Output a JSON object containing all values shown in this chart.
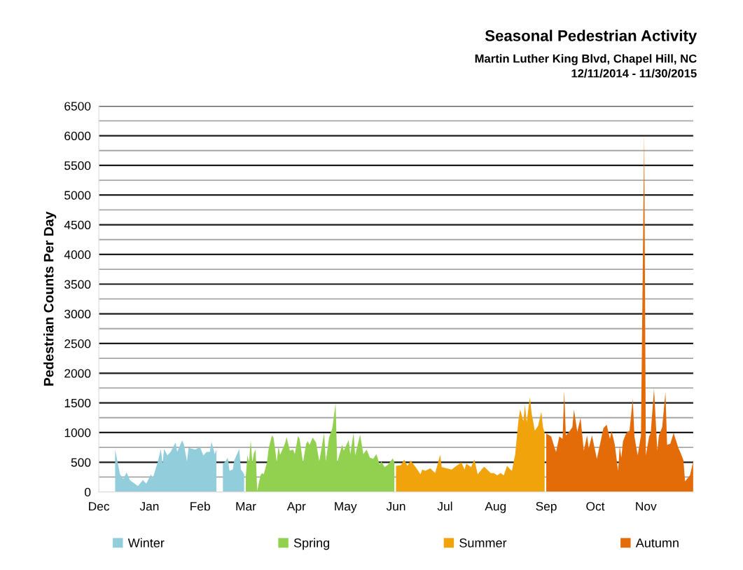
{
  "chart_data": {
    "type": "area",
    "title": "Seasonal Pedestrian Activity",
    "subtitle": "Martin Luther King Blvd, Chapel Hill, NC\n12/11/2014 - 11/30/2015",
    "ylabel": "Pedestrian Counts Per Day",
    "xlim": [
      "2014-12-01",
      "2015-11-30"
    ],
    "xticks": [
      {
        "value": "2014-12-01",
        "label": "Dec"
      },
      {
        "value": "2015-01-01",
        "label": "Jan"
      },
      {
        "value": "2015-02-01",
        "label": "Feb"
      },
      {
        "value": "2015-03-01",
        "label": "Mar"
      },
      {
        "value": "2015-04-01",
        "label": "Apr"
      },
      {
        "value": "2015-05-01",
        "label": "May"
      },
      {
        "value": "2015-06-01",
        "label": "Jun"
      },
      {
        "value": "2015-07-01",
        "label": "Jul"
      },
      {
        "value": "2015-08-01",
        "label": "Aug"
      },
      {
        "value": "2015-09-01",
        "label": "Sep"
      },
      {
        "value": "2015-10-01",
        "label": "Oct"
      },
      {
        "value": "2015-11-01",
        "label": "Nov"
      }
    ],
    "ylim": [
      0,
      6500
    ],
    "yticks": [
      0,
      {
        "value": 250,
        "label": null
      },
      500,
      {
        "value": 750,
        "label": null
      },
      1000,
      {
        "value": 1250,
        "label": null
      },
      1500,
      {
        "value": 1750,
        "label": null
      },
      2000,
      {
        "value": 2250,
        "label": null
      },
      2500,
      {
        "value": 2750,
        "label": null
      },
      3000,
      {
        "value": 3250,
        "label": null
      },
      3500,
      {
        "value": 3750,
        "label": null
      },
      4000,
      {
        "value": 4250,
        "label": null
      },
      4500,
      {
        "value": 4750,
        "label": null
      },
      5000,
      {
        "value": 5250,
        "label": null
      },
      5500,
      {
        "value": 5750,
        "label": null
      },
      6000,
      {
        "value": 6250,
        "label": null
      },
      6500
    ],
    "grid": "y",
    "legend": "bottom",
    "series": [
      {
        "name": "Winter",
        "color": "#92cddc",
        "x": [
          "2014-12-11",
          "2014-12-14",
          "2014-12-16",
          "2014-12-18",
          "2014-12-20",
          "2014-12-22",
          "2014-12-25",
          "2014-12-28",
          "2014-12-30",
          "2015-01-02",
          "2015-01-03",
          "2015-01-06",
          "2015-01-08",
          "2015-01-09",
          "2015-01-10",
          "2015-01-12",
          "2015-01-14",
          "2015-01-17",
          "2015-01-18",
          "2015-01-21",
          "2015-01-22",
          "2015-01-24",
          "2015-01-25",
          "2015-01-29",
          "2015-02-01",
          "2015-02-03",
          "2015-02-05",
          "2015-02-07",
          "2015-02-08",
          "2015-02-10",
          "2015-02-11",
          "2015-02-12",
          "2015-02-14",
          "2015-02-15",
          "2015-02-16",
          "2015-02-18",
          "2015-02-19",
          "2015-02-21",
          "2015-02-22",
          "2015-02-25",
          "2015-02-26",
          "2015-02-28"
        ],
        "values": [
          714,
          298,
          218,
          330,
          198,
          159,
          99,
          198,
          139,
          298,
          226,
          496,
          722,
          476,
          722,
          615,
          675,
          834,
          675,
          866,
          814,
          516,
          742,
          714,
          754,
          615,
          675,
          675,
          846,
          635,
          714,
          null,
          null,
          476,
          496,
          575,
          357,
          377,
          536,
          722,
          377,
          300
        ]
      },
      {
        "name": "Spring",
        "color": "#92d050",
        "x": [
          "2015-03-01",
          "2015-03-02",
          "2015-03-03",
          "2015-03-04",
          "2015-03-05",
          "2015-03-06",
          "2015-03-07",
          "2015-03-08",
          "2015-03-10",
          "2015-03-11",
          "2015-03-12",
          "2015-03-14",
          "2015-03-15",
          "2015-03-17",
          "2015-03-18",
          "2015-03-20",
          "2015-03-21",
          "2015-03-22",
          "2015-03-25",
          "2015-03-26",
          "2015-03-28",
          "2015-03-30",
          "2015-03-31",
          "2015-04-02",
          "2015-04-03",
          "2015-04-05",
          "2015-04-07",
          "2015-04-08",
          "2015-04-09",
          "2015-04-11",
          "2015-04-13",
          "2015-04-15",
          "2015-04-18",
          "2015-04-19",
          "2015-04-21",
          "2015-04-23",
          "2015-04-25",
          "2015-04-26",
          "2015-04-29",
          "2015-04-30",
          "2015-05-03",
          "2015-05-04",
          "2015-05-06",
          "2015-05-07",
          "2015-05-10",
          "2015-05-12",
          "2015-05-14",
          "2015-05-16",
          "2015-05-18",
          "2015-05-20",
          "2015-05-22",
          "2015-05-23",
          "2015-05-25",
          "2015-05-27",
          "2015-05-30",
          "2015-05-31"
        ],
        "values": [
          258,
          615,
          496,
          873,
          496,
          655,
          714,
          20,
          278,
          318,
          298,
          496,
          734,
          953,
          913,
          504,
          766,
          623,
          814,
          921,
          695,
          714,
          635,
          941,
          893,
          496,
          814,
          854,
          794,
          913,
          834,
          516,
          993,
          516,
          913,
          1072,
          1489,
          496,
          794,
          695,
          873,
          635,
          993,
          615,
          965,
          635,
          714,
          576,
          556,
          635,
          457,
          516,
          417,
          457,
          564,
          496
        ]
      },
      {
        "name": "Summer",
        "color": "#f0a30a",
        "x": [
          "2015-06-01",
          "2015-06-04",
          "2015-06-06",
          "2015-06-08",
          "2015-06-10",
          "2015-06-13",
          "2015-06-16",
          "2015-06-17",
          "2015-06-19",
          "2015-06-22",
          "2015-06-25",
          "2015-06-28",
          "2015-06-29",
          "2015-07-02",
          "2015-07-05",
          "2015-07-08",
          "2015-07-11",
          "2015-07-13",
          "2015-07-14",
          "2015-07-17",
          "2015-07-19",
          "2015-07-21",
          "2015-07-24",
          "2015-07-25",
          "2015-07-29",
          "2015-07-31",
          "2015-08-02",
          "2015-08-04",
          "2015-08-06",
          "2015-08-08",
          "2015-08-10",
          "2015-08-11",
          "2015-08-13",
          "2015-08-15",
          "2015-08-16",
          "2015-08-18",
          "2015-08-19",
          "2015-08-20",
          "2015-08-22",
          "2015-08-23",
          "2015-08-25",
          "2015-08-27",
          "2015-08-29",
          "2015-08-30",
          "2015-08-31"
        ],
        "values": [
          437,
          449,
          544,
          437,
          528,
          417,
          298,
          377,
          357,
          397,
          318,
          623,
          417,
          397,
          377,
          437,
          496,
          377,
          476,
          417,
          548,
          298,
          397,
          425,
          318,
          318,
          278,
          318,
          278,
          437,
          377,
          357,
          635,
          1211,
          1390,
          1191,
          1469,
          1171,
          1600,
          1330,
          1032,
          1112,
          1350,
          1092,
          993
        ]
      },
      {
        "name": "Autumn",
        "color": "#e36c09",
        "x": [
          "2015-09-01",
          "2015-09-03",
          "2015-09-04",
          "2015-09-06",
          "2015-09-07",
          "2015-09-09",
          "2015-09-11",
          "2015-09-12",
          "2015-09-13",
          "2015-09-15",
          "2015-09-17",
          "2015-09-18",
          "2015-09-20",
          "2015-09-22",
          "2015-09-24",
          "2015-09-26",
          "2015-09-27",
          "2015-09-29",
          "2015-10-02",
          "2015-10-04",
          "2015-10-06",
          "2015-10-08",
          "2015-10-10",
          "2015-10-11",
          "2015-10-13",
          "2015-10-15",
          "2015-10-16",
          "2015-10-17",
          "2015-10-18",
          "2015-10-20",
          "2015-10-22",
          "2015-10-24",
          "2015-10-25",
          "2015-10-27",
          "2015-10-29",
          "2015-10-31",
          "2015-11-01",
          "2015-11-03",
          "2015-11-04",
          "2015-11-06",
          "2015-11-08",
          "2015-11-09",
          "2015-11-11",
          "2015-11-13",
          "2015-11-14",
          "2015-11-16",
          "2015-11-18",
          "2015-11-21",
          "2015-11-22",
          "2015-11-24",
          "2015-11-25",
          "2015-11-28",
          "2015-11-30"
        ],
        "values": [
          981,
          953,
          933,
          754,
          675,
          933,
          893,
          1700,
          953,
          1012,
          1092,
          1390,
          1012,
          1251,
          695,
          953,
          734,
          953,
          556,
          814,
          1072,
          1132,
          893,
          1032,
          794,
          357,
          774,
          576,
          854,
          993,
          1032,
          1568,
          933,
          615,
          953,
          6050,
          615,
          933,
          993,
          1740,
          695,
          953,
          1092,
          1680,
          794,
          814,
          993,
          734,
          675,
          536,
          179,
          278,
          516
        ]
      }
    ]
  }
}
